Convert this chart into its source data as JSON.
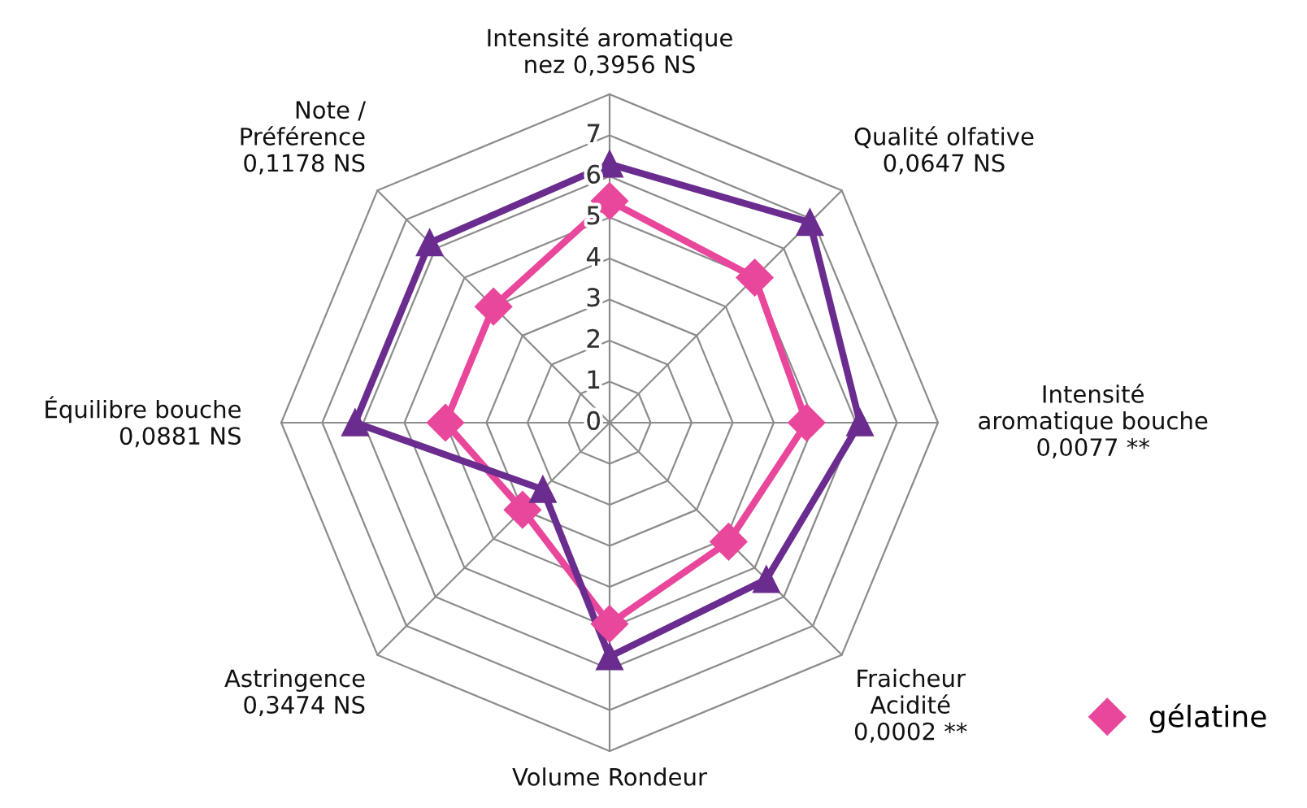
{
  "chart_data": {
    "type": "radar",
    "categories": [
      "Intensité aromatique\nnez 0,3956 NS",
      "Qualité olfative\n0,0647 NS",
      "Intensité\naromatique bouche\n0,0077 **",
      "Fraicheur\nAcidité\n0,0002 **",
      "Volume Rondeur",
      "Astringence\n0,3474 NS",
      "Équilibre bouche\n0,0881 NS",
      "Note /\nPréférence\n0,1178 NS"
    ],
    "series": [
      {
        "name": "gélatine",
        "color": "#e8479b",
        "marker": "diamond",
        "values": [
          5.4,
          5.0,
          4.8,
          4.1,
          4.9,
          3.0,
          4.0,
          4.0
        ]
      },
      {
        "color": "#6a2c8e",
        "marker": "triangle",
        "values": [
          6.3,
          6.9,
          6.1,
          5.4,
          5.7,
          2.3,
          6.2,
          6.2
        ]
      }
    ],
    "ylim": [
      0,
      8
    ],
    "yticks": [
      0,
      1,
      2,
      3,
      4,
      5,
      6,
      7
    ],
    "grid": true,
    "legend": "bottom right"
  }
}
